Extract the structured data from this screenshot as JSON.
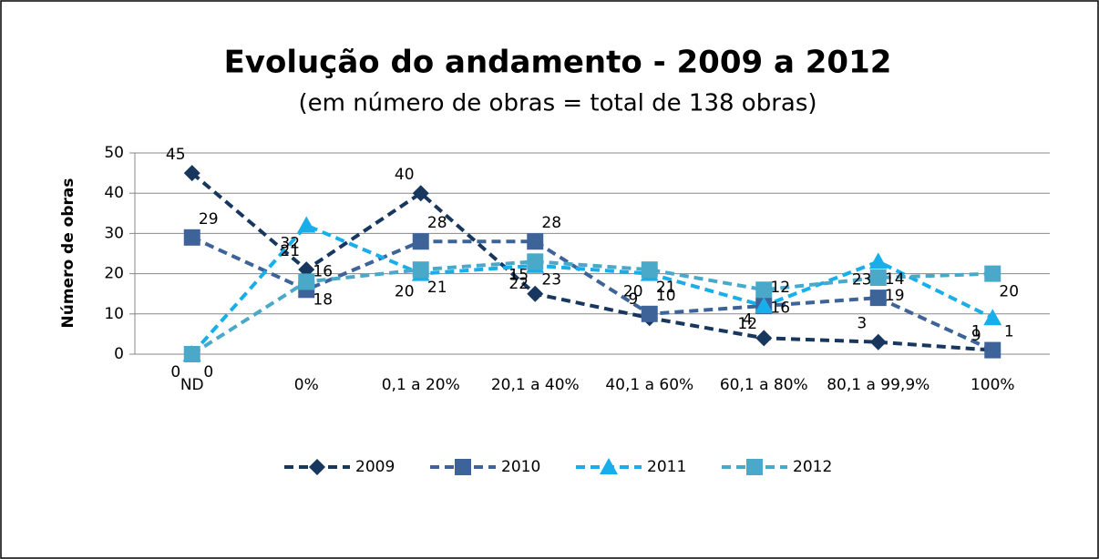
{
  "chart_data": {
    "type": "line",
    "title": "Evolução do andamento - 2009 a 2012",
    "subtitle": "(em número de obras = total de 138 obras)",
    "y_label": "Número de obras",
    "categories": [
      "ND",
      "0%",
      "0,1 a 20%",
      "20,1 a 40%",
      "40,1 a 60%",
      "60,1 a 80%",
      "80,1 a 99,9%",
      "100%"
    ],
    "series": [
      {
        "name": "2009",
        "color": "#17375e",
        "marker": "diamond",
        "values": [
          45,
          21,
          40,
          15,
          9,
          4,
          3,
          1
        ]
      },
      {
        "name": "2010",
        "color": "#3d6399",
        "marker": "square",
        "values": [
          29,
          16,
          28,
          28,
          10,
          12,
          14,
          1
        ]
      },
      {
        "name": "2011",
        "color": "#17aeea",
        "marker": "triangle",
        "values": [
          0,
          32,
          20,
          22,
          20,
          12,
          23,
          9
        ]
      },
      {
        "name": "2012",
        "color": "#4aa8c8",
        "marker": "square",
        "values": [
          0,
          18,
          21,
          23,
          21,
          16,
          19,
          20
        ]
      }
    ],
    "ylim": [
      0,
      50
    ],
    "yticks": [
      0,
      10,
      20,
      30,
      40,
      50
    ],
    "grid": true,
    "legend": "bottom"
  }
}
